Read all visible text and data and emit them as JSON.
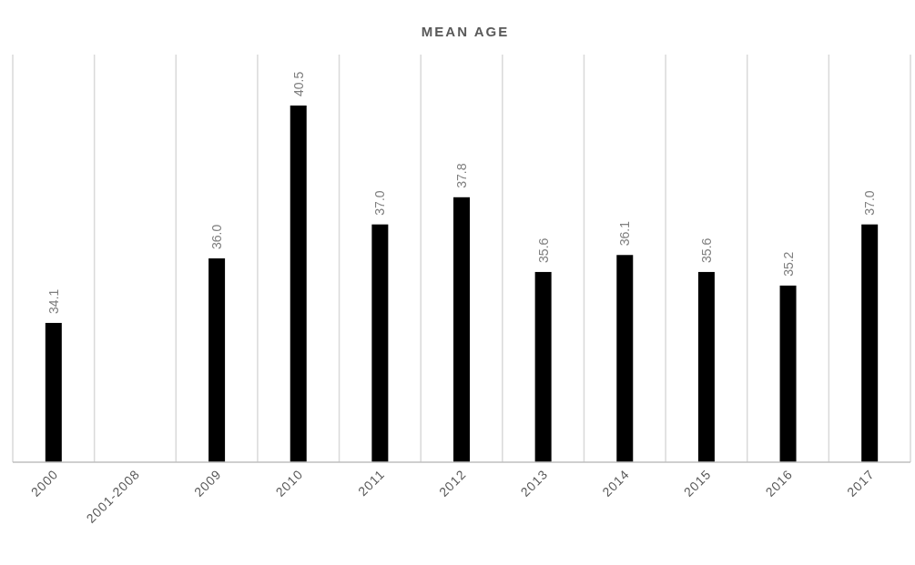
{
  "chart_data": {
    "type": "bar",
    "title": "MEAN AGE",
    "categories": [
      "2000",
      "2001-2008",
      "2009",
      "2010",
      "2011",
      "2012",
      "2013",
      "2014",
      "2015",
      "2016",
      "2017"
    ],
    "values": [
      34.1,
      null,
      36.0,
      40.5,
      37.0,
      37.8,
      35.6,
      36.1,
      35.6,
      35.2,
      37.0
    ],
    "value_labels": [
      "34.1",
      null,
      "36.0",
      "40.5",
      "37.0",
      "37.8",
      "35.6",
      "36.1",
      "35.6",
      "35.2",
      "37.0"
    ],
    "color": "#000000",
    "ylim": [
      30,
      42
    ],
    "grid": "x",
    "tick_labels": "x"
  }
}
